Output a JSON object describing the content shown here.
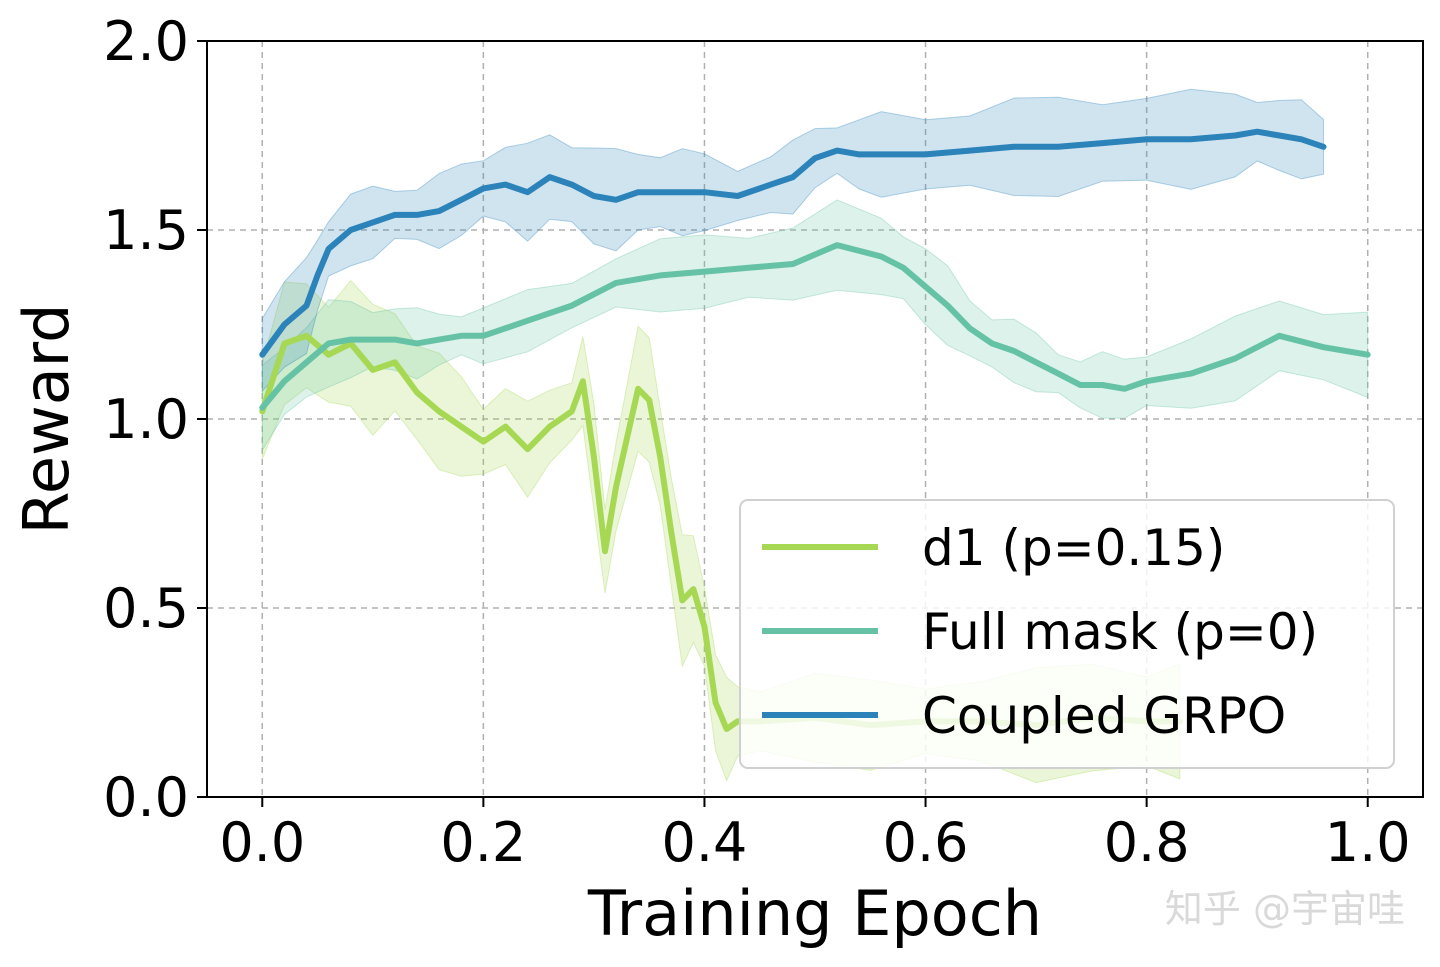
{
  "chart_data": {
    "type": "line",
    "xlabel": "Training Epoch",
    "ylabel": "Reward",
    "xlim": [
      -0.05,
      1.05
    ],
    "ylim": [
      0.0,
      2.0
    ],
    "xticks": [
      0.0,
      0.2,
      0.4,
      0.6,
      0.8,
      1.0
    ],
    "xtick_labels": [
      "0.0",
      "0.2",
      "0.4",
      "0.6",
      "0.8",
      "1.0"
    ],
    "yticks": [
      0.0,
      0.5,
      1.0,
      1.5,
      2.0
    ],
    "ytick_labels": [
      "0.0",
      "0.5",
      "1.0",
      "1.5",
      "2.0"
    ],
    "grid": true,
    "legend_position": "lower-right",
    "series": [
      {
        "name": "d1 (p=0.15)",
        "color": "#a6d854",
        "x": [
          0.0,
          0.02,
          0.04,
          0.06,
          0.08,
          0.1,
          0.12,
          0.14,
          0.16,
          0.18,
          0.2,
          0.22,
          0.24,
          0.26,
          0.28,
          0.29,
          0.3,
          0.31,
          0.32,
          0.34,
          0.35,
          0.36,
          0.37,
          0.38,
          0.39,
          0.4,
          0.41,
          0.42,
          0.43,
          0.45,
          0.5,
          0.55,
          0.6,
          0.65,
          0.7,
          0.75,
          0.8,
          0.83
        ],
        "y": [
          1.02,
          1.2,
          1.22,
          1.17,
          1.2,
          1.13,
          1.15,
          1.07,
          1.02,
          0.98,
          0.94,
          0.98,
          0.92,
          0.98,
          1.02,
          1.1,
          0.9,
          0.65,
          0.82,
          1.08,
          1.05,
          0.9,
          0.7,
          0.52,
          0.55,
          0.45,
          0.25,
          0.18,
          0.2,
          0.2,
          0.21,
          0.19,
          0.2,
          0.2,
          0.19,
          0.21,
          0.2,
          0.2
        ],
        "band_width": 0.18
      },
      {
        "name": "Full mask (p=0)",
        "color": "#66c2a5",
        "x": [
          0.0,
          0.02,
          0.04,
          0.06,
          0.08,
          0.1,
          0.12,
          0.14,
          0.16,
          0.18,
          0.2,
          0.24,
          0.28,
          0.32,
          0.36,
          0.4,
          0.44,
          0.48,
          0.52,
          0.56,
          0.58,
          0.6,
          0.62,
          0.64,
          0.66,
          0.68,
          0.7,
          0.72,
          0.74,
          0.76,
          0.78,
          0.8,
          0.84,
          0.88,
          0.92,
          0.96,
          1.0
        ],
        "y": [
          1.03,
          1.1,
          1.15,
          1.2,
          1.21,
          1.21,
          1.21,
          1.2,
          1.21,
          1.22,
          1.22,
          1.26,
          1.3,
          1.36,
          1.38,
          1.39,
          1.4,
          1.41,
          1.46,
          1.43,
          1.4,
          1.35,
          1.3,
          1.24,
          1.2,
          1.18,
          1.15,
          1.12,
          1.09,
          1.09,
          1.08,
          1.1,
          1.12,
          1.16,
          1.22,
          1.19,
          1.17
        ],
        "band_width": 0.12
      },
      {
        "name": "Coupled GRPO",
        "color": "#2b83ba",
        "x": [
          0.0,
          0.02,
          0.04,
          0.05,
          0.06,
          0.08,
          0.1,
          0.12,
          0.14,
          0.16,
          0.18,
          0.2,
          0.22,
          0.24,
          0.26,
          0.28,
          0.3,
          0.32,
          0.34,
          0.36,
          0.38,
          0.4,
          0.43,
          0.46,
          0.48,
          0.5,
          0.52,
          0.54,
          0.56,
          0.6,
          0.64,
          0.68,
          0.72,
          0.76,
          0.8,
          0.84,
          0.88,
          0.9,
          0.92,
          0.94,
          0.96
        ],
        "y": [
          1.17,
          1.25,
          1.3,
          1.38,
          1.45,
          1.5,
          1.52,
          1.54,
          1.54,
          1.55,
          1.58,
          1.61,
          1.62,
          1.6,
          1.64,
          1.62,
          1.59,
          1.58,
          1.6,
          1.6,
          1.6,
          1.6,
          1.59,
          1.62,
          1.64,
          1.69,
          1.71,
          1.7,
          1.7,
          1.7,
          1.71,
          1.72,
          1.72,
          1.73,
          1.74,
          1.74,
          1.75,
          1.76,
          1.75,
          1.74,
          1.72
        ],
        "band_width": 0.14
      }
    ]
  },
  "watermark": "知乎 @宇宙哇"
}
